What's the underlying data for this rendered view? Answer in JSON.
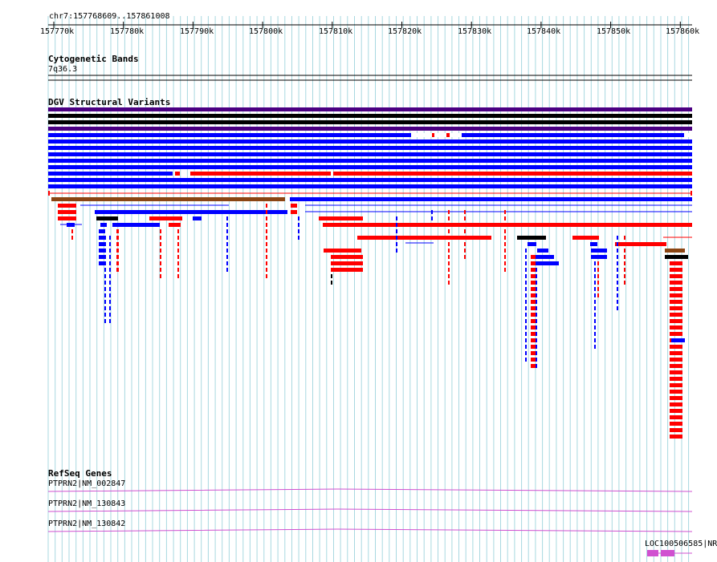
{
  "location": "chr7:157768609..157861008",
  "ruler": {
    "start": 157768609,
    "end": 157861008,
    "ticks": [
      "157770k",
      "157780k",
      "157790k",
      "157800k",
      "157810k",
      "157820k",
      "157830k",
      "157840k",
      "157850k",
      "157860k"
    ]
  },
  "tracks": {
    "cytoband": {
      "title": "Cytogenetic Bands",
      "band": "7q36.3"
    },
    "dgv": {
      "title": "DGV Structural Variants"
    },
    "refseq": {
      "title": "RefSeq Genes",
      "genes": [
        "PTPRN2|NM_002847",
        "PTPRN2|NM_130843",
        "PTPRN2|NM_130842"
      ],
      "extra_gene": "LOC100506585|NR"
    }
  },
  "colors": {
    "grid": "#a8d8e0",
    "gain": "#0000ff",
    "loss": "#ff0000",
    "complex": "#000000",
    "inversion": "#4b0082",
    "other": "#8b4513",
    "gene": "#d050d0"
  }
}
